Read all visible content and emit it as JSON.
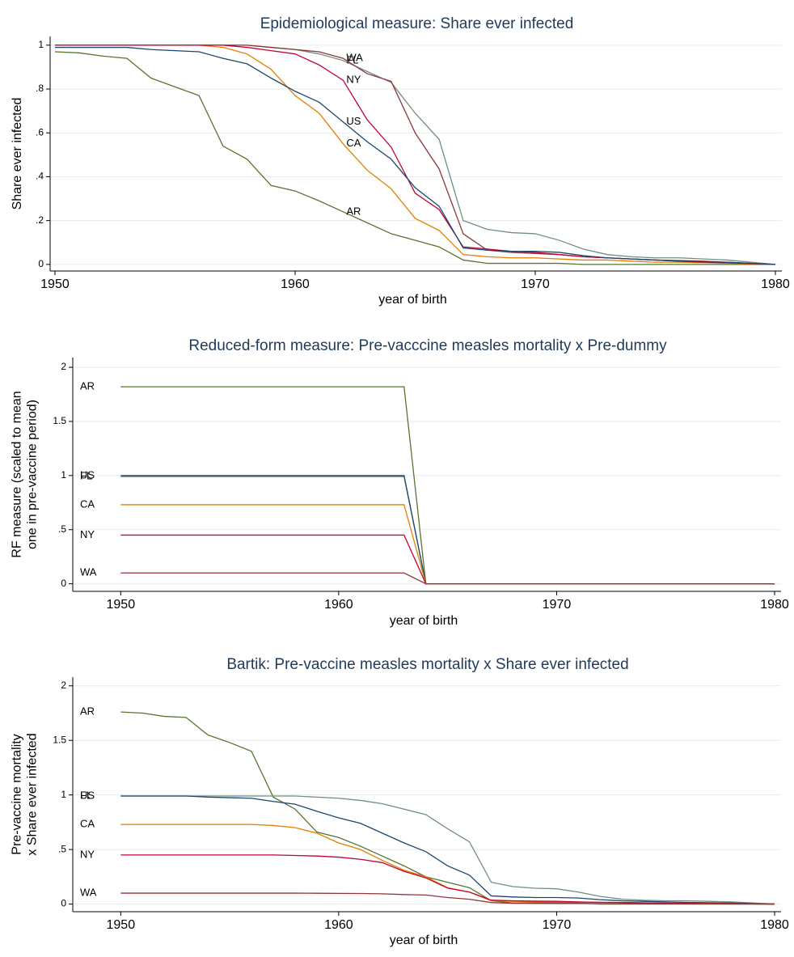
{
  "chart_data": [
    {
      "type": "line",
      "title": "Epidemiological measure: Share ever infected",
      "xlabel": "year of birth",
      "ylabel": [
        "Share ever infected"
      ],
      "x": [
        1950,
        1951,
        1952,
        1953,
        1954,
        1955,
        1956,
        1957,
        1958,
        1959,
        1960,
        1961,
        1962,
        1963,
        1964,
        1965,
        1966,
        1967,
        1968,
        1969,
        1970,
        1971,
        1972,
        1973,
        1974,
        1975,
        1976,
        1977,
        1978,
        1979,
        1980
      ],
      "xlim": [
        1949.8,
        1980
      ],
      "xticks": [
        1950,
        1960,
        1970,
        1980
      ],
      "ylim": [
        -0.03,
        1.04
      ],
      "yticks": [
        0,
        {
          "value": 0.2,
          "label": ".2"
        },
        {
          "value": 0.4,
          "label": ".4"
        },
        {
          "value": 0.6,
          "label": ".6"
        },
        {
          "value": 0.8,
          "label": ".8"
        },
        1
      ],
      "grid": true,
      "series": [
        {
          "name": "AR",
          "color": "#55752f",
          "values": [
            0.97,
            0.965,
            0.95,
            0.94,
            0.85,
            0.81,
            0.77,
            0.54,
            0.48,
            0.36,
            0.335,
            0.29,
            0.24,
            0.19,
            0.14,
            0.11,
            0.08,
            0.02,
            0.005,
            0.005,
            0.005,
            0.005,
            0,
            0,
            0,
            0,
            0,
            0,
            0,
            0,
            0
          ]
        },
        {
          "name": "FL",
          "color": "#6e8e84",
          "values": [
            1,
            1,
            1,
            1,
            1,
            1,
            1,
            1,
            1,
            0.99,
            0.98,
            0.96,
            0.93,
            0.88,
            0.83,
            0.69,
            0.57,
            0.2,
            0.16,
            0.145,
            0.14,
            0.11,
            0.07,
            0.045,
            0.035,
            0.03,
            0.03,
            0.025,
            0.02,
            0.01,
            0
          ]
        },
        {
          "name": "WA",
          "color": "#90353b",
          "values": [
            1,
            1,
            1,
            1,
            1,
            1,
            1,
            1,
            1,
            0.99,
            0.98,
            0.97,
            0.94,
            0.87,
            0.835,
            0.6,
            0.435,
            0.14,
            0.065,
            0.055,
            0.05,
            0.045,
            0.035,
            0.03,
            0.025,
            0.02,
            0.018,
            0.015,
            0.01,
            0.005,
            0
          ]
        },
        {
          "name": "CA",
          "color": "#e37e00",
          "values": [
            1,
            1,
            1,
            1,
            1,
            1,
            1,
            0.99,
            0.96,
            0.89,
            0.77,
            0.69,
            0.55,
            0.43,
            0.345,
            0.21,
            0.155,
            0.045,
            0.035,
            0.03,
            0.03,
            0.025,
            0.02,
            0.02,
            0.015,
            0.01,
            0.01,
            0.008,
            0.005,
            0.003,
            0
          ]
        },
        {
          "name": "NY",
          "color": "#c10534",
          "values": [
            1,
            1,
            1,
            1,
            1,
            1,
            1,
            1,
            0.99,
            0.975,
            0.96,
            0.91,
            0.84,
            0.66,
            0.535,
            0.325,
            0.25,
            0.08,
            0.07,
            0.06,
            0.055,
            0.045,
            0.035,
            0.03,
            0.025,
            0.02,
            0.015,
            0.01,
            0.008,
            0.004,
            0
          ]
        },
        {
          "name": "US",
          "color": "#1a476f",
          "values": [
            0.99,
            0.99,
            0.99,
            0.99,
            0.98,
            0.975,
            0.97,
            0.94,
            0.915,
            0.85,
            0.79,
            0.74,
            0.65,
            0.56,
            0.48,
            0.35,
            0.265,
            0.075,
            0.065,
            0.06,
            0.06,
            0.055,
            0.04,
            0.03,
            0.025,
            0.02,
            0.015,
            0.012,
            0.01,
            0.005,
            0
          ]
        }
      ]
    },
    {
      "type": "line",
      "title": "Reduced-form measure: Pre-vacccine measles mortality x Pre-dummy",
      "xlabel": "year of birth",
      "ylabel": [
        "RF measure (scaled to mean",
        "one in pre-vaccine period)"
      ],
      "x": [
        1950,
        1951,
        1952,
        1953,
        1954,
        1955,
        1956,
        1957,
        1958,
        1959,
        1960,
        1961,
        1962,
        1963,
        1964,
        1965,
        1966,
        1967,
        1968,
        1969,
        1970,
        1971,
        1972,
        1973,
        1974,
        1975,
        1976,
        1977,
        1978,
        1979,
        1980
      ],
      "xlim": [
        1947.8,
        1980
      ],
      "xticks": [
        1950,
        1960,
        1970,
        1980
      ],
      "ylim": [
        -0.07,
        2.09
      ],
      "yticks": [
        0,
        {
          "value": 0.5,
          "label": ".5"
        },
        1,
        1.5,
        2
      ],
      "grid": true,
      "series": [
        {
          "name": "AR",
          "color": "#55752f",
          "values": [
            1.82,
            1.82,
            1.82,
            1.82,
            1.82,
            1.82,
            1.82,
            1.82,
            1.82,
            1.82,
            1.82,
            1.82,
            1.82,
            1.82,
            0,
            0,
            0,
            0,
            0,
            0,
            0,
            0,
            0,
            0,
            0,
            0,
            0,
            0,
            0,
            0,
            0
          ]
        },
        {
          "name": "FL",
          "color": "#6e8e84",
          "values": [
            0.99,
            0.99,
            0.99,
            0.99,
            0.99,
            0.99,
            0.99,
            0.99,
            0.99,
            0.99,
            0.99,
            0.99,
            0.99,
            0.99,
            0,
            0,
            0,
            0,
            0,
            0,
            0,
            0,
            0,
            0,
            0,
            0,
            0,
            0,
            0,
            0,
            0
          ]
        },
        {
          "name": "US",
          "color": "#1a476f",
          "values": [
            1,
            1,
            1,
            1,
            1,
            1,
            1,
            1,
            1,
            1,
            1,
            1,
            1,
            1,
            0,
            0,
            0,
            0,
            0,
            0,
            0,
            0,
            0,
            0,
            0,
            0,
            0,
            0,
            0,
            0,
            0
          ]
        },
        {
          "name": "CA",
          "color": "#e37e00",
          "values": [
            0.73,
            0.73,
            0.73,
            0.73,
            0.73,
            0.73,
            0.73,
            0.73,
            0.73,
            0.73,
            0.73,
            0.73,
            0.73,
            0.73,
            0,
            0,
            0,
            0,
            0,
            0,
            0,
            0,
            0,
            0,
            0,
            0,
            0,
            0,
            0,
            0,
            0
          ]
        },
        {
          "name": "NY",
          "color": "#c10534",
          "values": [
            0.45,
            0.45,
            0.45,
            0.45,
            0.45,
            0.45,
            0.45,
            0.45,
            0.45,
            0.45,
            0.45,
            0.45,
            0.45,
            0.45,
            0,
            0,
            0,
            0,
            0,
            0,
            0,
            0,
            0,
            0,
            0,
            0,
            0,
            0,
            0,
            0,
            0
          ]
        },
        {
          "name": "WA",
          "color": "#90353b",
          "values": [
            0.1,
            0.1,
            0.1,
            0.1,
            0.1,
            0.1,
            0.1,
            0.1,
            0.1,
            0.1,
            0.1,
            0.1,
            0.1,
            0.1,
            0,
            0,
            0,
            0,
            0,
            0,
            0,
            0,
            0,
            0,
            0,
            0,
            0,
            0,
            0,
            0,
            0
          ]
        }
      ]
    },
    {
      "type": "line",
      "title": "Bartik: Pre-vaccine measles mortality x Share ever infected",
      "xlabel": "year of birth",
      "ylabel": [
        "Pre-vaccine mortality",
        "x Share ever infected"
      ],
      "x": [
        1950,
        1951,
        1952,
        1953,
        1954,
        1955,
        1956,
        1957,
        1958,
        1959,
        1960,
        1961,
        1962,
        1963,
        1964,
        1965,
        1966,
        1967,
        1968,
        1969,
        1970,
        1971,
        1972,
        1973,
        1974,
        1975,
        1976,
        1977,
        1978,
        1979,
        1980
      ],
      "xlim": [
        1947.8,
        1980
      ],
      "xticks": [
        1950,
        1960,
        1970,
        1980
      ],
      "ylim": [
        -0.07,
        2.08
      ],
      "yticks": [
        0,
        {
          "value": 0.5,
          "label": ".5"
        },
        1,
        1.5,
        2
      ],
      "grid": true,
      "series": [
        {
          "name": "AR",
          "color": "#55752f",
          "values": [
            1.76,
            1.75,
            1.72,
            1.71,
            1.55,
            1.48,
            1.4,
            0.98,
            0.87,
            0.66,
            0.61,
            0.53,
            0.44,
            0.35,
            0.25,
            0.2,
            0.15,
            0.03,
            0.01,
            0.01,
            0.01,
            0.01,
            0,
            0,
            0,
            0,
            0,
            0,
            0,
            0,
            0
          ]
        },
        {
          "name": "FL",
          "color": "#6e8e84",
          "values": [
            0.99,
            0.99,
            0.99,
            0.99,
            0.99,
            0.99,
            0.99,
            0.99,
            0.99,
            0.98,
            0.97,
            0.95,
            0.92,
            0.87,
            0.82,
            0.69,
            0.57,
            0.2,
            0.16,
            0.145,
            0.14,
            0.11,
            0.07,
            0.045,
            0.035,
            0.03,
            0.03,
            0.025,
            0.02,
            0.01,
            0
          ]
        },
        {
          "name": "US",
          "color": "#1a476f",
          "values": [
            0.99,
            0.99,
            0.99,
            0.99,
            0.98,
            0.975,
            0.97,
            0.94,
            0.915,
            0.85,
            0.79,
            0.74,
            0.65,
            0.56,
            0.48,
            0.35,
            0.265,
            0.075,
            0.065,
            0.06,
            0.06,
            0.055,
            0.04,
            0.03,
            0.025,
            0.02,
            0.015,
            0.012,
            0.01,
            0.005,
            0
          ]
        },
        {
          "name": "CA",
          "color": "#e37e00",
          "values": [
            0.73,
            0.73,
            0.73,
            0.73,
            0.73,
            0.73,
            0.73,
            0.72,
            0.7,
            0.65,
            0.56,
            0.5,
            0.4,
            0.31,
            0.25,
            0.15,
            0.11,
            0.03,
            0.025,
            0.02,
            0.02,
            0.018,
            0.015,
            0.015,
            0.01,
            0.008,
            0.007,
            0.006,
            0.004,
            0.002,
            0
          ]
        },
        {
          "name": "NY",
          "color": "#c10534",
          "values": [
            0.45,
            0.45,
            0.45,
            0.45,
            0.45,
            0.45,
            0.45,
            0.45,
            0.445,
            0.44,
            0.43,
            0.41,
            0.38,
            0.3,
            0.24,
            0.146,
            0.11,
            0.036,
            0.03,
            0.027,
            0.025,
            0.02,
            0.016,
            0.014,
            0.011,
            0.009,
            0.007,
            0.005,
            0.004,
            0.002,
            0
          ]
        },
        {
          "name": "WA",
          "color": "#90353b",
          "values": [
            0.1,
            0.1,
            0.1,
            0.1,
            0.1,
            0.1,
            0.1,
            0.1,
            0.1,
            0.099,
            0.098,
            0.097,
            0.094,
            0.087,
            0.083,
            0.06,
            0.044,
            0.014,
            0.007,
            0.006,
            0.005,
            0.005,
            0.004,
            0.003,
            0.003,
            0.002,
            0.002,
            0.002,
            0.001,
            0.001,
            0
          ]
        }
      ]
    }
  ]
}
